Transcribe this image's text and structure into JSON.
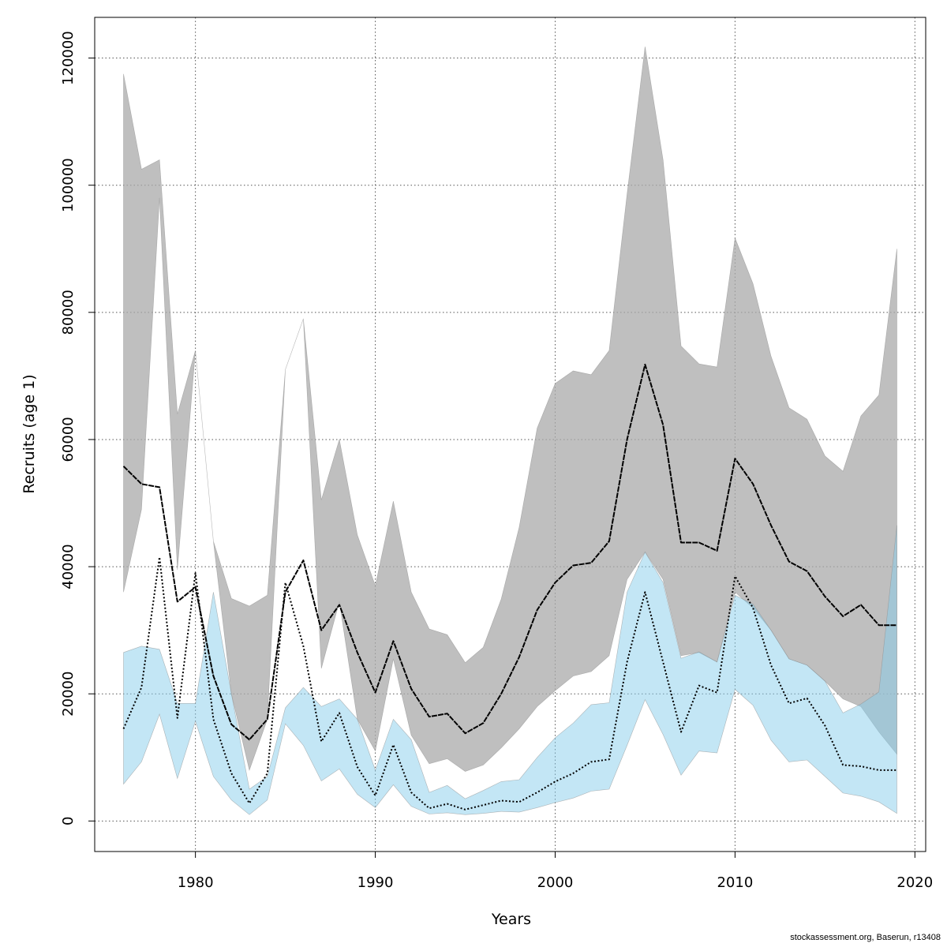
{
  "chart_data": {
    "type": "line",
    "xlabel": "Years",
    "ylabel": "Recruits (age 1)",
    "xlim": [
      1974.4,
      2020.6
    ],
    "ylim": [
      -4800,
      126400
    ],
    "xticks": [
      "1980",
      "1990",
      "2000",
      "2010",
      "2020"
    ],
    "xtick_values": [
      1980,
      1990,
      2000,
      2010,
      2020
    ],
    "yticks": [
      "0",
      "20000",
      "40000",
      "60000",
      "80000",
      "100000",
      "120000"
    ],
    "ytick_values": [
      0,
      20000,
      40000,
      60000,
      80000,
      100000,
      120000
    ],
    "grid": true,
    "x": [
      1976,
      1977,
      1978,
      1979,
      1980,
      1981,
      1982,
      1983,
      1984,
      1985,
      1986,
      1987,
      1988,
      1989,
      1990,
      1991,
      1992,
      1993,
      1994,
      1995,
      1996,
      1997,
      1998,
      1999,
      2000,
      2001,
      2002,
      2003,
      2004,
      2005,
      2006,
      2007,
      2008,
      2009,
      2010,
      2011,
      2012,
      2013,
      2014,
      2015,
      2016,
      2017,
      2018,
      2019
    ],
    "series": [
      {
        "style": "solid",
        "color": "#000000",
        "band_color": "#a9a9a9",
        "values": [
          55800,
          53000,
          52500,
          34500,
          36800,
          22800,
          15200,
          12800,
          16000,
          36000,
          41000,
          30000,
          34000,
          26500,
          20200,
          28300,
          20800,
          16400,
          16900,
          13800,
          15400,
          20000,
          25800,
          33200,
          37500,
          40200,
          40600,
          44000,
          60000,
          71800,
          62300,
          43800,
          43800,
          42500,
          57000,
          53000,
          46500,
          40800,
          39300,
          35300,
          32200,
          34000,
          30800,
          30800
        ],
        "lower": [
          36000,
          49000,
          98000,
          39500,
          74000,
          44000,
          20000,
          8000,
          16000,
          71000,
          79000,
          24000,
          34500,
          16000,
          11000,
          25500,
          13500,
          9000,
          9800,
          7800,
          8800,
          11500,
          14500,
          18000,
          20500,
          22800,
          23500,
          26000,
          38000,
          42300,
          38000,
          26000,
          26500,
          25000,
          36000,
          33500,
          30000,
          25500,
          24500,
          22000,
          19200,
          18000,
          14000,
          10500
        ],
        "upper": [
          117500,
          102500,
          104000,
          64000,
          74000,
          44000,
          35000,
          33800,
          35500,
          71000,
          79000,
          50500,
          60000,
          45000,
          37000,
          50300,
          36000,
          30200,
          29300,
          24900,
          27300,
          34900,
          46200,
          61800,
          68800,
          70800,
          70200,
          74000,
          98600,
          121800,
          104000,
          74700,
          71900,
          71400,
          91700,
          84500,
          73100,
          65000,
          63200,
          57400,
          55000,
          63700,
          67000,
          90000
        ]
      },
      {
        "style": "dotted",
        "color": "#000000",
        "band_color": "#87ceeb",
        "values": [
          14500,
          21000,
          41500,
          16200,
          39000,
          16000,
          7500,
          2800,
          7500,
          37500,
          27500,
          12500,
          17000,
          8500,
          4000,
          12000,
          4500,
          2000,
          2700,
          1800,
          2500,
          3200,
          3000,
          4500,
          6200,
          7500,
          9300,
          9700,
          25000,
          36000,
          25000,
          14000,
          21300,
          20200,
          38500,
          33500,
          24500,
          18500,
          19300,
          15000,
          8800,
          8600,
          8000,
          8000
        ],
        "lower": [
          5800,
          9300,
          16800,
          6700,
          15700,
          7000,
          3300,
          1000,
          3300,
          15300,
          11900,
          6300,
          8200,
          4200,
          2100,
          5700,
          2300,
          1100,
          1300,
          1000,
          1200,
          1500,
          1400,
          2100,
          2900,
          3600,
          4700,
          5000,
          11900,
          19100,
          13600,
          7200,
          11000,
          10700,
          20700,
          18200,
          12700,
          9300,
          9600,
          7000,
          4400,
          3900,
          3000,
          1200
        ],
        "upper": [
          26500,
          27500,
          27000,
          18500,
          18500,
          36000,
          20000,
          5000,
          7000,
          17800,
          21000,
          18000,
          19200,
          16000,
          8000,
          16000,
          12800,
          4500,
          5600,
          3500,
          4800,
          6200,
          6500,
          10000,
          13100,
          15400,
          18300,
          18600,
          36000,
          42300,
          37500,
          25600,
          26600,
          25000,
          35500,
          34100,
          30000,
          25500,
          24500,
          22000,
          17000,
          18400,
          20300,
          46500
        ]
      }
    ]
  },
  "footer": "stockassessment.org, Baserun, r13408"
}
